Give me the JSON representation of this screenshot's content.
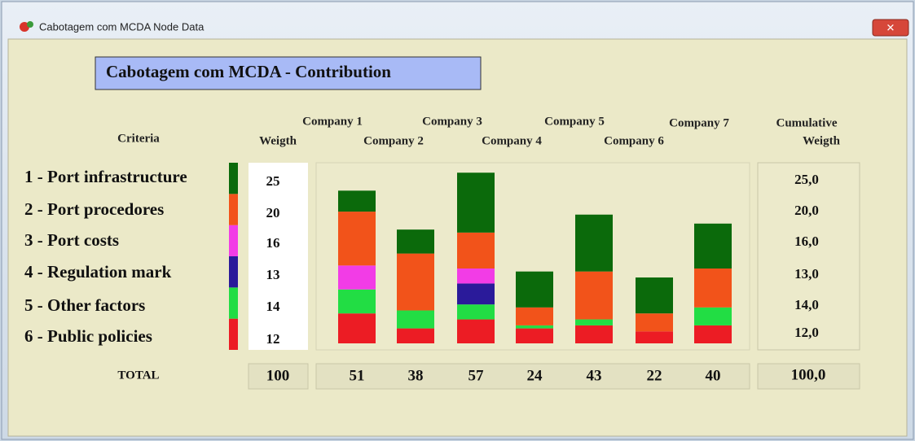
{
  "window_title": "Cabotagem com MCDA Node Data",
  "heading": "Cabotagem com MCDA - Contribution",
  "headers": {
    "criteria": "Criteria",
    "weight": "Weigth",
    "cumulative": [
      "Cumulative",
      "Weigth"
    ]
  },
  "total_label": "TOTAL",
  "chart_data": {
    "type": "stacked_bar",
    "categories": [
      "Company 1",
      "Company 2",
      "Company 3",
      "Company 4",
      "Company 5",
      "Company 6",
      "Company 7"
    ],
    "series": [
      {
        "name": "6 - Public policies",
        "color": "#ec1c24",
        "values": [
          10,
          5,
          8,
          5,
          6,
          4,
          6
        ]
      },
      {
        "name": "5 - Other factors",
        "color": "#22dd44",
        "values": [
          8,
          6,
          5,
          1,
          2,
          0,
          6
        ]
      },
      {
        "name": "4 - Regulation mark",
        "color": "#2a1a9a",
        "values": [
          0,
          0,
          7,
          0,
          0,
          0,
          0
        ]
      },
      {
        "name": "3 - Port costs",
        "color": "#f23ce6",
        "values": [
          8,
          0,
          5,
          0,
          0,
          0,
          0
        ]
      },
      {
        "name": "2 - Port procedores",
        "color": "#f2531a",
        "values": [
          18,
          19,
          12,
          6,
          16,
          6,
          13
        ]
      },
      {
        "name": "1 - Port infrastructure",
        "color": "#0b6a0b",
        "values": [
          7,
          8,
          20,
          12,
          19,
          12,
          15
        ]
      }
    ],
    "weights": [
      12,
      14,
      13,
      16,
      20,
      25
    ],
    "cumulative_weight": [
      {
        "value": 12,
        "label": "12,0"
      },
      {
        "value": 14,
        "label": "14,0"
      },
      {
        "value": 13,
        "label": "13,0"
      },
      {
        "value": 16,
        "label": "16,0"
      },
      {
        "value": 20,
        "label": "20,0"
      },
      {
        "value": 25,
        "label": "25,0"
      }
    ],
    "totals": [
      51,
      38,
      57,
      24,
      43,
      22,
      40
    ],
    "total_weight": 100,
    "total_cumulative": {
      "value": 100,
      "label": "100,0"
    }
  }
}
